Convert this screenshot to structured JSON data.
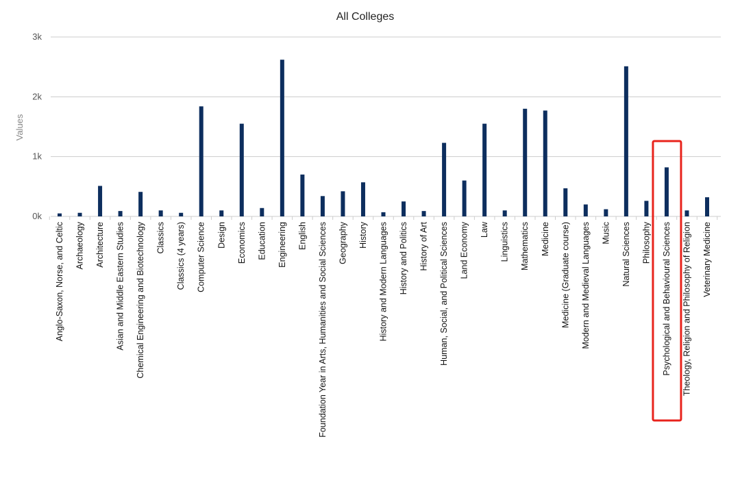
{
  "chart_data": {
    "type": "bar",
    "title": "All Colleges",
    "xlabel": "",
    "ylabel": "Values",
    "ylim": [
      0,
      3000
    ],
    "y_ticks": [
      {
        "value": 0,
        "label": "0k"
      },
      {
        "value": 1000,
        "label": "1k"
      },
      {
        "value": 2000,
        "label": "2k"
      },
      {
        "value": 3000,
        "label": "3k"
      }
    ],
    "grid": true,
    "legend": "none",
    "categories": [
      "Anglo-Saxon, Norse, and Celtic",
      "Archaeology",
      "Architecture",
      "Asian and Middle Eastern Studies",
      "Chemical Engineering and Biotechnology",
      "Classics",
      "Classics (4 years)",
      "Computer Science",
      "Design",
      "Economics",
      "Education",
      "Engineering",
      "English",
      "Foundation Year in Arts, Humanities and Social Sciences",
      "Geography",
      "History",
      "History and Modern Languages",
      "History and Politics",
      "History of Art",
      "Human, Social, and Political Sciences",
      "Land Economy",
      "Law",
      "Linguistics",
      "Mathematics",
      "Medicine",
      "Medicine (Graduate course)",
      "Modern and Medieval Languages",
      "Music",
      "Natural Sciences",
      "Philosophy",
      "Psychological and Behavioural Sciences",
      "Theology, Religion and Philosophy of Religion",
      "Veterinary Medicine"
    ],
    "series": [
      {
        "values": [
          50,
          60,
          510,
          90,
          410,
          100,
          60,
          1840,
          100,
          1550,
          140,
          2620,
          700,
          340,
          420,
          570,
          70,
          250,
          90,
          1230,
          600,
          1550,
          100,
          1800,
          1770,
          470,
          200,
          120,
          2510,
          260,
          820,
          100,
          320
        ]
      }
    ],
    "highlight": {
      "category": "Psychological and Behavioural Sciences",
      "color": "#e8231c"
    },
    "colors": {
      "bar": "#0d2e5e",
      "grid": "#cccccc",
      "axis_text": "#555555",
      "ylabel": "#888888",
      "title": "#222222",
      "category_text": "#111111"
    }
  }
}
